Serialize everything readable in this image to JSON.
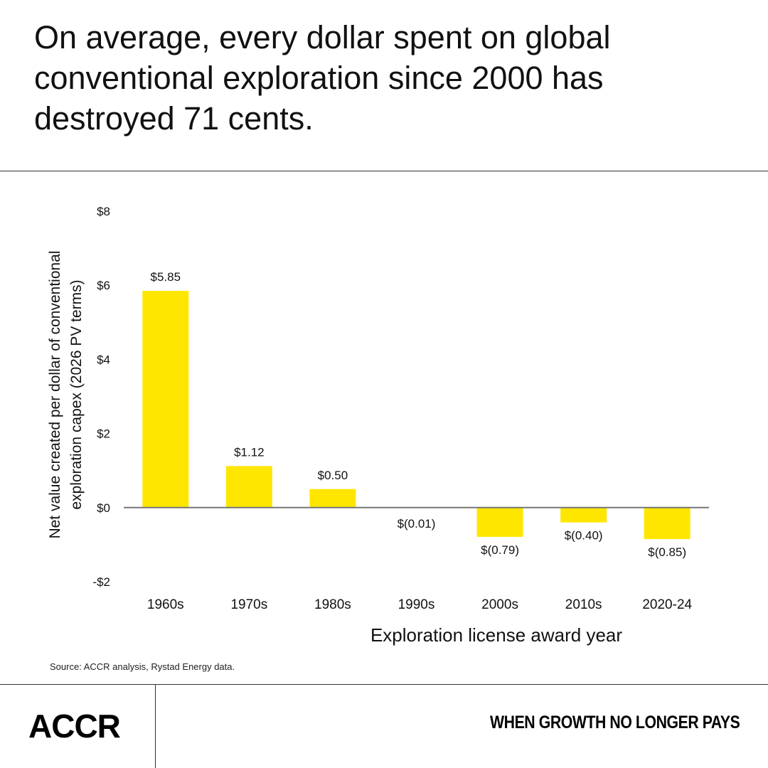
{
  "header": {
    "title": "On average, every dollar spent on global conventional exploration since 2000 has destroyed 71 cents."
  },
  "chart_data": {
    "type": "bar",
    "title": "",
    "categories": [
      "1960s",
      "1970s",
      "1980s",
      "1990s",
      "2000s",
      "2010s",
      "2020-24"
    ],
    "values": [
      5.85,
      1.12,
      0.5,
      -0.01,
      -0.79,
      -0.4,
      -0.85
    ],
    "data_labels": [
      "$5.85",
      "$1.12",
      "$0.50",
      "$(0.01)",
      "$(0.79)",
      "$(0.40)",
      "$(0.85)"
    ],
    "xlabel": "Exploration license award year",
    "ylabel": "Net value created per dollar of conventional exploration capex (2026 PV terms)",
    "ylabel_lines": [
      "Net value created per dollar of conventional",
      "exploration capex (2026 PV terms)"
    ],
    "ylim": [
      -2,
      8
    ],
    "yticks": [
      8,
      6,
      4,
      2,
      0,
      -2
    ],
    "ytick_labels": [
      "$8",
      "$6",
      "$4",
      "$2",
      "$0",
      "-$2"
    ],
    "grid": false,
    "bar_color": "#FFE600"
  },
  "footer": {
    "source": "Source: ACCR analysis, Rystad Energy data.",
    "logo": "ACCR",
    "tagline": "WHEN GROWTH NO LONGER PAYS"
  }
}
